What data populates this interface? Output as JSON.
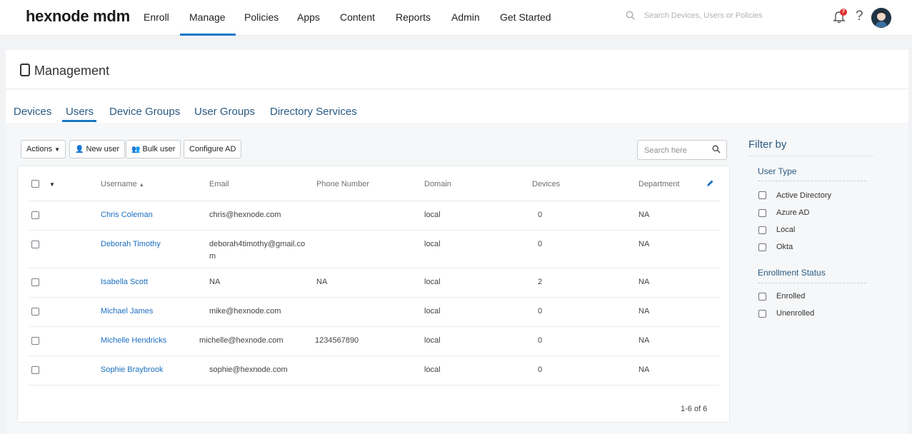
{
  "nav": {
    "logo": "hexnode mdm",
    "items": [
      "Enroll",
      "Manage",
      "Policies",
      "Apps",
      "Content",
      "Reports",
      "Admin",
      "Get Started"
    ],
    "active": "Manage",
    "search_placeholder": "Search Devices, Users or Policies",
    "notification_count": "7",
    "help": "?"
  },
  "page": {
    "title": "Management",
    "tabs": [
      "Devices",
      "Users",
      "Device Groups",
      "User Groups",
      "Directory Services"
    ],
    "active_tab": "Users"
  },
  "toolbar": {
    "actions": "Actions",
    "new_user": "New user",
    "bulk_user": "Bulk user",
    "configure_ad": "Configure AD",
    "search_placeholder": "Search here"
  },
  "table": {
    "headers": [
      "Username",
      "Email",
      "Phone Number",
      "Domain",
      "Devices",
      "Department"
    ],
    "rows": [
      {
        "username": "Chris Coleman",
        "email": "chris@hexnode.com",
        "phone": "",
        "domain": "local",
        "devices": "0",
        "department": "NA"
      },
      {
        "username": "Deborah Timothy",
        "email_line1": "deborah4timothy@gmail.co",
        "email_line2": "m",
        "phone": "",
        "domain": "local",
        "devices": "0",
        "department": "NA"
      },
      {
        "username": "Isabella Scott",
        "email": "NA",
        "phone": "NA",
        "domain": "local",
        "devices": "2",
        "department": "NA"
      },
      {
        "username": "Michael James",
        "email": "mike@hexnode.com",
        "phone": "",
        "domain": "local",
        "devices": "0",
        "department": "NA"
      },
      {
        "username": "Michelle Hendricks",
        "email": "michelle@hexnode.com",
        "phone": "1234567890",
        "domain": "local",
        "devices": "0",
        "department": "NA"
      },
      {
        "username": "Sophie Braybrook",
        "email": "sophie@hexnode.com",
        "phone": "",
        "domain": "local",
        "devices": "0",
        "department": "NA"
      }
    ],
    "pagination": "1-6 of 6"
  },
  "filter": {
    "title": "Filter by",
    "user_type_title": "User Type",
    "user_types": [
      "Active Directory",
      "Azure AD",
      "Local",
      "Okta"
    ],
    "enrollment_title": "Enrollment Status",
    "enrollment": [
      "Enrolled",
      "Unenrolled"
    ]
  },
  "colors": {
    "accent": "#1a76c8",
    "link": "#1b6fc0",
    "heading": "#2a5a82",
    "badge": "#e03131"
  },
  "icons": {
    "search": "search-icon",
    "bell": "bell-icon",
    "help": "help-icon",
    "avatar": "avatar",
    "device": "device-icon",
    "user": "user-icon",
    "users": "users-icon",
    "sort": "sort-asc-icon",
    "edit": "pencil-icon",
    "dropdown": "caret-down-icon"
  }
}
